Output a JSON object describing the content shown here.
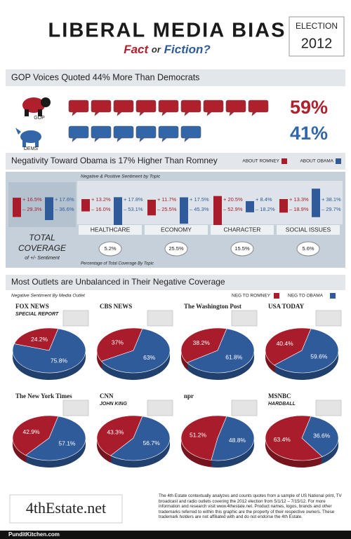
{
  "header": {
    "title": "LIBERAL MEDIA BIAS",
    "fact": "Fact",
    "or": "or",
    "fiction": "Fiction?",
    "election": "ELECTION",
    "year": "2012"
  },
  "voices": {
    "heading": "GOP Voices Quoted 44% More Than Democrats",
    "rows": [
      {
        "label": "GOP",
        "icons": 9,
        "percent": "59%",
        "color": "#b01f2c"
      },
      {
        "label": "DEMS",
        "icons": 6,
        "percent": "41%",
        "color": "#3366a8"
      }
    ]
  },
  "negativity": {
    "heading": "Negativity Toward Obama is 17% Higher Than Romney",
    "legend": [
      "ABOUT ROMNEY",
      "ABOUT OBAMA"
    ],
    "subheading": "Negative & Positive Sentiment by Topic",
    "total": {
      "label": "TOTAL",
      "label2": "COVERAGE",
      "label3": "of +/- Sentiment",
      "romney": [
        16.5,
        -29.3
      ],
      "romney_labels": [
        "+ 16.5%",
        "– 29.3%"
      ],
      "obama": [
        17.6,
        -36.6
      ],
      "obama_labels": [
        "+ 17.6%",
        "– 36.6%"
      ]
    },
    "topics": [
      {
        "name": "HEALTHCARE",
        "romney": [
          13.2,
          -16.0
        ],
        "romney_labels": [
          "+ 13.2%",
          "– 16.0%"
        ],
        "obama": [
          17.8,
          -53.1
        ],
        "obama_labels": [
          "+ 17.8%",
          "– 53.1%"
        ],
        "coverage": "5.2%"
      },
      {
        "name": "ECONOMY",
        "romney": [
          11.7,
          -25.5
        ],
        "romney_labels": [
          "+ 11.7%",
          "– 25.5%"
        ],
        "obama": [
          17.5,
          -45.3
        ],
        "obama_labels": [
          "+ 17.5%",
          "– 45.3%"
        ],
        "coverage": "25.5%"
      },
      {
        "name": "CHARACTER",
        "romney": [
          20.5,
          -52.9
        ],
        "romney_labels": [
          "+ 20.5%",
          "– 52.9%"
        ],
        "obama": [
          8.4,
          -18.2
        ],
        "obama_labels": [
          "+ 8.4%",
          "– 18.2%"
        ],
        "coverage": "15.5%"
      },
      {
        "name": "SOCIAL ISSUES",
        "romney": [
          13.3,
          -18.9
        ],
        "romney_labels": [
          "+ 13.3%",
          "– 18.9%"
        ],
        "obama": [
          38.1,
          -29.7
        ],
        "obama_labels": [
          "+ 38.1%",
          "– 29.7%"
        ],
        "coverage": "5.6%"
      }
    ],
    "footnote": "Percentage of Total Coverage By Topic"
  },
  "outlets": {
    "heading": "Most Outlets are Unbalanced in Their Negative Coverage",
    "subheading": "Negative Sentiment By Media Outlet",
    "legend": [
      "NEG TO ROMNEY",
      "NEG TO OBAMA"
    ],
    "colors": [
      "#a81c2b",
      "#2f5b9b"
    ],
    "items": [
      {
        "logo": "FOX NEWS",
        "show": "SPECIAL REPORT",
        "values": [
          24.2,
          75.8
        ],
        "value_labels": [
          "24.2%",
          "75.8%"
        ]
      },
      {
        "logo": "CBS NEWS",
        "values": [
          37,
          63
        ],
        "value_labels": [
          "37%",
          "63%"
        ]
      },
      {
        "logo": "The Washington Post",
        "values": [
          38.2,
          61.8
        ],
        "value_labels": [
          "38.2%",
          "61.8%"
        ]
      },
      {
        "logo": "USA TODAY",
        "values": [
          40.4,
          59.6
        ],
        "value_labels": [
          "40.4%",
          "59.6%"
        ]
      },
      {
        "logo": "The New York Times",
        "values": [
          42.9,
          57.1
        ],
        "value_labels": [
          "42.9%",
          "57.1%"
        ]
      },
      {
        "logo": "CNN",
        "show": "JOHN KING",
        "values": [
          43.3,
          56.7
        ],
        "value_labels": [
          "43.3%",
          "56.7%"
        ]
      },
      {
        "logo": "npr",
        "values": [
          51.2,
          48.8
        ],
        "value_labels": [
          "51.2%",
          "48.8%"
        ]
      },
      {
        "logo": "MSNBC",
        "show": "HARDBALL",
        "values": [
          63.4,
          36.6
        ],
        "value_labels": [
          "63.4%",
          "36.6%"
        ]
      }
    ]
  },
  "footer": {
    "brand": "4thEstate.net",
    "note": "The 4th Estate contextually analyzes and counts quotes from a sample of US National print, TV broadcast and radio outlets covering the 2012 election from 5/1/12 – 7/15/12. For more information and research visit www.4thestate.net. Product names, logos, brands and other trademarks referred to within this graphic are the property of their respective owners. These trademark holders are not affiliated with and do not endorse the 4th Estate.",
    "credit": "PunditKitchen.com"
  }
}
